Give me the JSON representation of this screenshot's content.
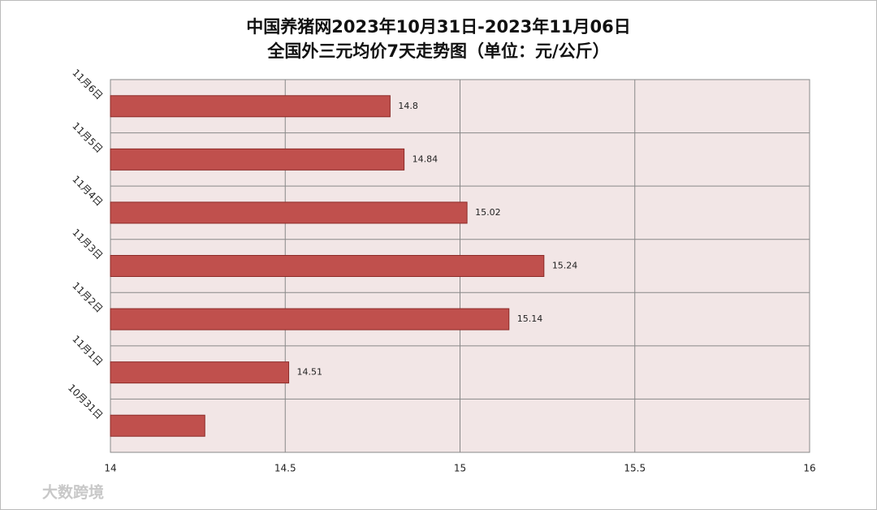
{
  "chart_data": {
    "type": "bar",
    "orientation": "horizontal",
    "title": "中国养猪网2023年10月31日-2023年11月06日",
    "subtitle": "全国外三元均价7天走势图（单位：元/公斤）",
    "categories": [
      "11月6日",
      "11月5日",
      "11月4日",
      "11月3日",
      "11月2日",
      "11月1日",
      "10月31日"
    ],
    "values": [
      14.8,
      14.84,
      15.02,
      15.24,
      15.14,
      14.51,
      14.27
    ],
    "value_labels": [
      "14.8",
      "14.84",
      "15.02",
      "15.24",
      "15.14",
      "14.51",
      null
    ],
    "color": "#c0504d",
    "xlim": [
      14,
      16
    ],
    "xticks": [
      14,
      14.5,
      15,
      15.5,
      16
    ],
    "grid": true
  },
  "watermark": "大数跨境"
}
